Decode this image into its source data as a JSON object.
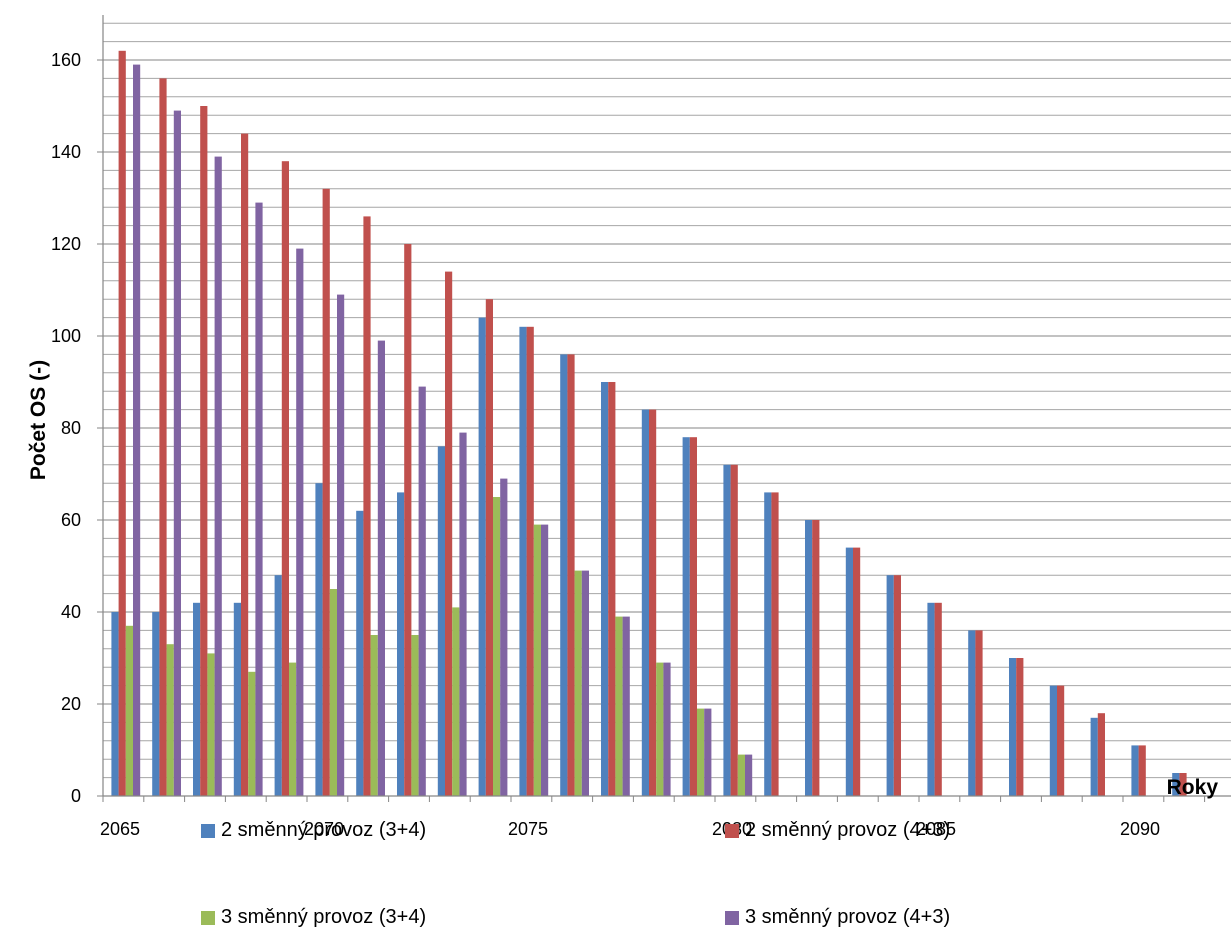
{
  "chart_data": {
    "type": "bar",
    "title": "",
    "xlabel": "Roky",
    "ylabel": "Počet OS (-)",
    "ylim": [
      0,
      170
    ],
    "y_ticks": [
      0,
      20,
      40,
      60,
      80,
      100,
      120,
      140,
      160
    ],
    "x_tick_labels": [
      "2065",
      "2070",
      "2075",
      "2080",
      "2085",
      "2090"
    ],
    "grid": true,
    "legend_position": "bottom",
    "categories": [
      "2065",
      "2066",
      "2067",
      "2068",
      "2069",
      "2070",
      "2071",
      "2072",
      "2073",
      "2074",
      "2075",
      "2076",
      "2077",
      "2078",
      "2079",
      "2080",
      "2081",
      "2082",
      "2083",
      "2084",
      "2085",
      "2086",
      "2087",
      "2088",
      "2089",
      "2090",
      "2091"
    ],
    "series": [
      {
        "name": "2 směnný provoz (3+4)",
        "color": "#4f81bd",
        "values": [
          40,
          40,
          42,
          42,
          48,
          68,
          62,
          66,
          76,
          104,
          102,
          96,
          90,
          84,
          78,
          72,
          66,
          60,
          54,
          48,
          42,
          36,
          30,
          24,
          17,
          11,
          5
        ]
      },
      {
        "name": "2 směnný provoz (4+3)",
        "color": "#c0504d",
        "values": [
          162,
          156,
          150,
          144,
          138,
          132,
          126,
          120,
          114,
          108,
          102,
          96,
          90,
          84,
          78,
          72,
          66,
          60,
          54,
          48,
          42,
          36,
          30,
          24,
          18,
          11,
          5
        ]
      },
      {
        "name": "3 směnný provoz (3+4)",
        "color": "#9bbb59",
        "values": [
          37,
          33,
          31,
          27,
          29,
          45,
          35,
          35,
          41,
          65,
          59,
          49,
          39,
          29,
          19,
          9,
          0,
          0,
          0,
          0,
          0,
          0,
          0,
          0,
          0,
          0,
          0
        ]
      },
      {
        "name": "3 směnný provoz (4+3)",
        "color": "#8064a2",
        "values": [
          159,
          149,
          139,
          129,
          119,
          109,
          99,
          89,
          79,
          69,
          59,
          49,
          39,
          29,
          19,
          9,
          0,
          0,
          0,
          0,
          0,
          0,
          0,
          0,
          0,
          0,
          0
        ]
      }
    ]
  }
}
